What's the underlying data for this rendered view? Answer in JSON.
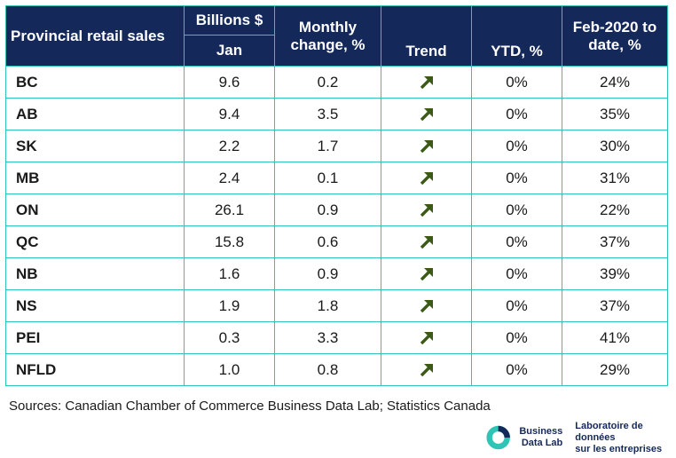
{
  "header": {
    "provincial": "Provincial retail sales",
    "billions": "Billions $",
    "jan": "Jan",
    "monthly": "Monthly change, %",
    "trend": "Trend",
    "ytd": "YTD, %",
    "feb": "Feb-2020 to date, %"
  },
  "chart_data": {
    "type": "table",
    "columns": [
      "Provincial retail sales",
      "Billions $ Jan",
      "Monthly change, %",
      "Trend",
      "YTD, %",
      "Feb-2020 to date, %"
    ],
    "rows": [
      {
        "province": "BC",
        "billions_jan": "9.6",
        "monthly_change": "0.2",
        "trend": "up",
        "ytd": "0%",
        "feb2020": "24%"
      },
      {
        "province": "AB",
        "billions_jan": "9.4",
        "monthly_change": "3.5",
        "trend": "up",
        "ytd": "0%",
        "feb2020": "35%"
      },
      {
        "province": "SK",
        "billions_jan": "2.2",
        "monthly_change": "1.7",
        "trend": "up",
        "ytd": "0%",
        "feb2020": "30%"
      },
      {
        "province": "MB",
        "billions_jan": "2.4",
        "monthly_change": "0.1",
        "trend": "up",
        "ytd": "0%",
        "feb2020": "31%"
      },
      {
        "province": "ON",
        "billions_jan": "26.1",
        "monthly_change": "0.9",
        "trend": "up",
        "ytd": "0%",
        "feb2020": "22%"
      },
      {
        "province": "QC",
        "billions_jan": "15.8",
        "monthly_change": "0.6",
        "trend": "up",
        "ytd": "0%",
        "feb2020": "37%"
      },
      {
        "province": "NB",
        "billions_jan": "1.6",
        "monthly_change": "0.9",
        "trend": "up",
        "ytd": "0%",
        "feb2020": "39%"
      },
      {
        "province": "NS",
        "billions_jan": "1.9",
        "monthly_change": "1.8",
        "trend": "up",
        "ytd": "0%",
        "feb2020": "37%"
      },
      {
        "province": "PEI",
        "billions_jan": "0.3",
        "monthly_change": "3.3",
        "trend": "up",
        "ytd": "0%",
        "feb2020": "41%"
      },
      {
        "province": "NFLD",
        "billions_jan": "1.0",
        "monthly_change": "0.8",
        "trend": "up",
        "ytd": "0%",
        "feb2020": "29%"
      }
    ]
  },
  "trend_icon": "arrow-up-right-icon",
  "source": "Sources: Canadian Chamber of Commerce Business Data Lab; Statistics Canada",
  "logo": {
    "en_line1": "Business",
    "en_line2": "Data Lab",
    "fr_line1": "Laboratoire de données",
    "fr_line2": "sur les entreprises"
  },
  "colors": {
    "header_bg": "#14285a",
    "border": "#2ec4b6",
    "arrow": "#3b5a18",
    "logo_teal": "#2ec4b6",
    "logo_navy": "#14285a"
  }
}
